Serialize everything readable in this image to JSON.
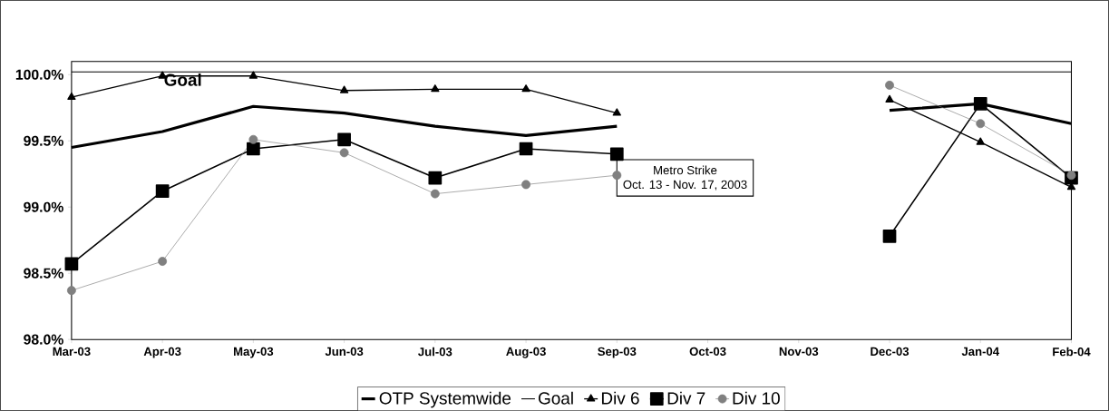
{
  "chart_data": {
    "type": "line",
    "categories": [
      "Mar-03",
      "Apr-03",
      "May-03",
      "Jun-03",
      "Jul-03",
      "Aug-03",
      "Sep-03",
      "Oct-03",
      "Nov-03",
      "Dec-03",
      "Jan-04",
      "Feb-04"
    ],
    "series": [
      {
        "name": "OTP Systemwide",
        "color": "#000000",
        "marker": "none",
        "values": [
          99.45,
          99.57,
          99.76,
          99.71,
          99.61,
          99.54,
          99.61,
          null,
          null,
          99.73,
          99.78,
          99.63
        ]
      },
      {
        "name": "Goal",
        "color": "#000000",
        "marker": "none",
        "values": [
          100.02,
          100.02,
          100.02,
          100.02,
          100.02,
          100.02,
          100.02,
          100.02,
          100.02,
          100.02,
          100.02,
          100.02
        ]
      },
      {
        "name": "Div 6",
        "color": "#000000",
        "marker": "triangle",
        "values": [
          99.83,
          99.99,
          99.99,
          99.88,
          99.89,
          99.89,
          99.71,
          null,
          null,
          99.81,
          99.49,
          99.15
        ]
      },
      {
        "name": "Div 7",
        "color": "#000000",
        "marker": "square",
        "values": [
          98.57,
          99.12,
          99.44,
          99.51,
          99.22,
          99.44,
          99.4,
          null,
          null,
          98.78,
          99.78,
          99.22
        ]
      },
      {
        "name": "Div 10",
        "color": "#808080",
        "marker": "circle",
        "values": [
          98.37,
          98.59,
          99.51,
          99.41,
          99.1,
          99.17,
          99.24,
          null,
          null,
          99.92,
          99.63,
          99.24
        ]
      }
    ],
    "ylim": [
      98,
      100.1
    ],
    "yticks": [
      {
        "value": 98,
        "label": "98.0%"
      },
      {
        "value": 98.5,
        "label": "98.5%"
      },
      {
        "value": 99,
        "label": "99.0%"
      },
      {
        "value": 99.5,
        "label": "99.5%"
      },
      {
        "value": 100,
        "label": "100.0%"
      }
    ],
    "annotations": [
      {
        "text": "Goal",
        "x": "Apr-03",
        "y": 100.02
      },
      "Metro Strike",
      "Oct. 13 - Nov. 17, 2003"
    ],
    "legend": "bottom",
    "grid": false,
    "line_style": "solid"
  }
}
